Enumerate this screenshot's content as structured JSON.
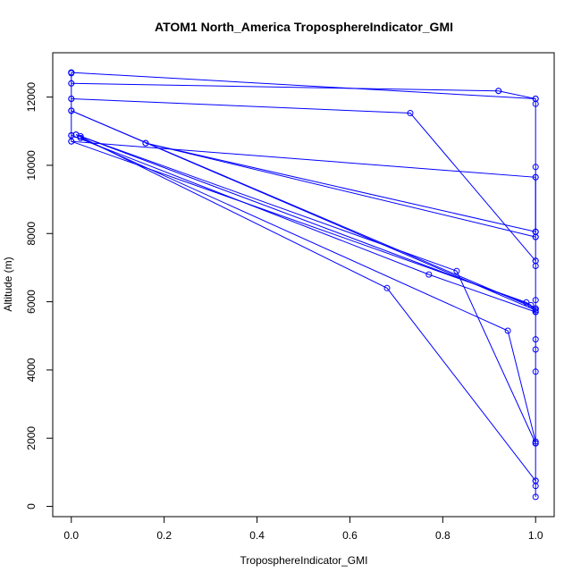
{
  "chart_data": {
    "type": "line",
    "title": "ATOM1 North_America TroposphereIndicator_GMI",
    "xlabel": "TroposphereIndicator_GMI",
    "ylabel": "Altitude (m)",
    "xlim": [
      -0.04,
      1.04
    ],
    "ylim": [
      -300,
      13300
    ],
    "x_ticks": [
      0.0,
      0.2,
      0.4,
      0.6,
      0.8,
      1.0
    ],
    "x_tick_labels": [
      "0.0",
      "0.2",
      "0.4",
      "0.6",
      "0.8",
      "1.0"
    ],
    "y_ticks": [
      0,
      2000,
      4000,
      6000,
      8000,
      10000,
      12000
    ],
    "y_tick_labels": [
      "0",
      "2000",
      "4000",
      "6000",
      "8000",
      "10000",
      "12000"
    ],
    "color": "#0000ff",
    "grid": false,
    "series": [
      {
        "x": [
          1.0,
          1.0,
          1.0,
          1.0,
          1.0,
          1.0,
          1.0,
          1.0,
          1.0,
          1.0,
          1.0,
          1.0,
          1.0,
          1.0,
          1.0,
          0.0,
          0.0,
          0.0,
          0.0,
          0.0,
          0.0,
          0.0
        ],
        "y": [
          280,
          600,
          750,
          1850,
          3950,
          4600,
          4900,
          5700,
          5800,
          6050,
          7050,
          7200,
          7900,
          8050,
          9650,
          10700,
          10870,
          11600,
          11950,
          12400,
          12700,
          12720
        ]
      },
      {
        "x": [
          0.0,
          1.0
        ],
        "y": [
          12720,
          11950
        ]
      },
      {
        "x": [
          0.0,
          0.92
        ],
        "y": [
          12400,
          12180
        ]
      },
      {
        "x": [
          0.0,
          0.73,
          1.0
        ],
        "y": [
          11950,
          11530,
          7200
        ]
      },
      {
        "x": [
          0.0,
          1.0
        ],
        "y": [
          11600,
          5750
        ]
      },
      {
        "x": [
          0.0,
          1.0
        ],
        "y": [
          11600,
          5800
        ]
      },
      {
        "x": [
          0.0,
          0.77,
          1.0
        ],
        "y": [
          10880,
          6800,
          5700
        ]
      },
      {
        "x": [
          0.0,
          0.98,
          1.0
        ],
        "y": [
          10700,
          5980,
          5800
        ]
      },
      {
        "x": [
          0.01,
          0.68,
          1.0
        ],
        "y": [
          10900,
          6400,
          750
        ]
      },
      {
        "x": [
          0.01,
          0.83,
          1.0
        ],
        "y": [
          10900,
          6900,
          1850
        ]
      },
      {
        "x": [
          0.02,
          0.99
        ],
        "y": [
          10850,
          5900
        ]
      },
      {
        "x": [
          0.16,
          1.0
        ],
        "y": [
          10650,
          8050
        ]
      },
      {
        "x": [
          0.16,
          1.0
        ],
        "y": [
          10650,
          7900
        ]
      },
      {
        "x": [
          0.02,
          0.94,
          1.0
        ],
        "y": [
          10800,
          5150,
          1900
        ]
      },
      {
        "x": [
          0.92,
          1.0,
          1.0,
          1.0,
          1.0,
          1.0
        ],
        "y": [
          12180,
          11950,
          11800,
          9950,
          9650,
          8050
        ]
      }
    ]
  }
}
